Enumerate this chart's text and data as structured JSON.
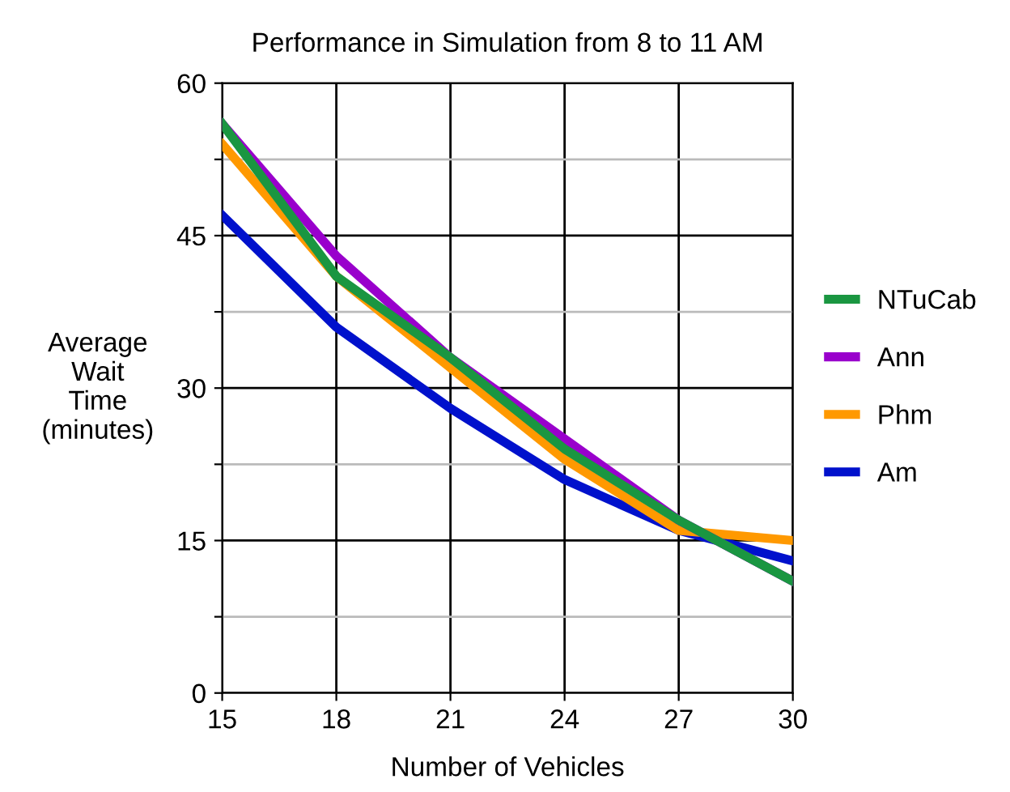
{
  "chart_data": {
    "type": "line",
    "title": "Performance in Simulation from 8 to 11 AM",
    "xlabel": "Number of Vehicles",
    "ylabel": "Average\nWait\nTime\n(minutes)",
    "x": [
      15,
      18,
      21,
      24,
      27,
      30
    ],
    "xlim": [
      15,
      30
    ],
    "xticks": [
      15,
      18,
      21,
      24,
      27,
      30
    ],
    "ylim": [
      0,
      60
    ],
    "yticks": [
      0,
      {
        "value": 7.5,
        "label": null
      },
      15,
      {
        "value": 22.5,
        "label": null
      },
      30,
      {
        "value": 37.5,
        "label": null
      },
      45,
      {
        "value": 52.5,
        "label": null
      },
      60
    ],
    "grid": true,
    "legend": "right",
    "marker": "none",
    "line_style": "solid",
    "series": [
      {
        "name": "NTuCab",
        "color": "#1a9641",
        "values": [
          56,
          41,
          33,
          24,
          17,
          11
        ]
      },
      {
        "name": "Ann",
        "color": "#9900cc",
        "values": [
          56,
          43,
          33,
          25,
          17,
          11
        ]
      },
      {
        "name": "Phm",
        "color": "#ff9900",
        "values": [
          54,
          41,
          32,
          23,
          16,
          15
        ]
      },
      {
        "name": "Am",
        "color": "#0011cc",
        "values": [
          47,
          36,
          28,
          21,
          16,
          13
        ]
      }
    ]
  }
}
